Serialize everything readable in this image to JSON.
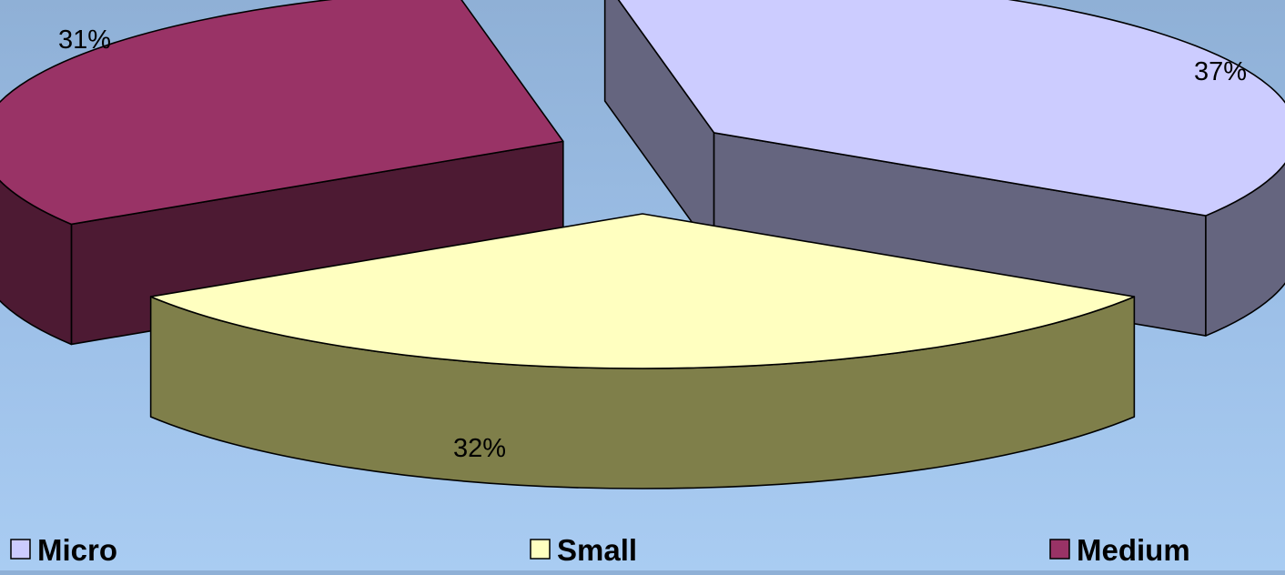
{
  "chart_data": {
    "type": "pie",
    "variant": "3d-exploded",
    "slices": [
      {
        "key": "micro",
        "name": "Micro",
        "value": 37,
        "label": "37%",
        "top_color": "#ccccff",
        "side_color": "#65657f"
      },
      {
        "key": "small",
        "name": "Small",
        "value": 32,
        "label": "32%",
        "top_color": "#ffffc0",
        "side_color": "#7f7f4a"
      },
      {
        "key": "medium",
        "name": "Medium",
        "value": 31,
        "label": "31%",
        "top_color": "#993366",
        "side_color": "#4d1a33"
      }
    ],
    "legend": {
      "position": "bottom",
      "items": [
        "Micro",
        "Small",
        "Medium"
      ]
    },
    "grid": false
  }
}
